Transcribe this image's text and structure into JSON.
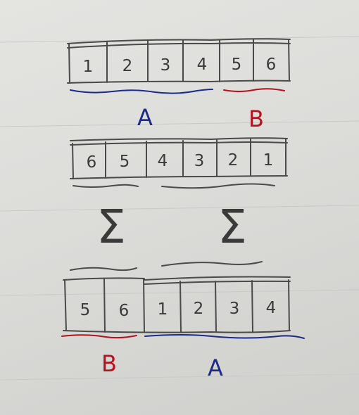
{
  "colors": {
    "paper": "#dcdcd9",
    "ink_black": "#3a3a3a",
    "ink_blue": "#1c2a8a",
    "ink_red": "#b3121f"
  },
  "row_top": {
    "cells": [
      "1",
      "2",
      "3",
      "4",
      "5",
      "6"
    ],
    "label_a": "A",
    "label_b": "B"
  },
  "row_middle": {
    "cells": [
      "6",
      "5",
      "4",
      "3",
      "2",
      "1"
    ],
    "symbol_left": "Σ",
    "symbol_right": "Σ"
  },
  "row_bottom": {
    "cells": [
      "5",
      "6",
      "1",
      "2",
      "3",
      "4"
    ],
    "label_b": "B",
    "label_a": "A"
  }
}
